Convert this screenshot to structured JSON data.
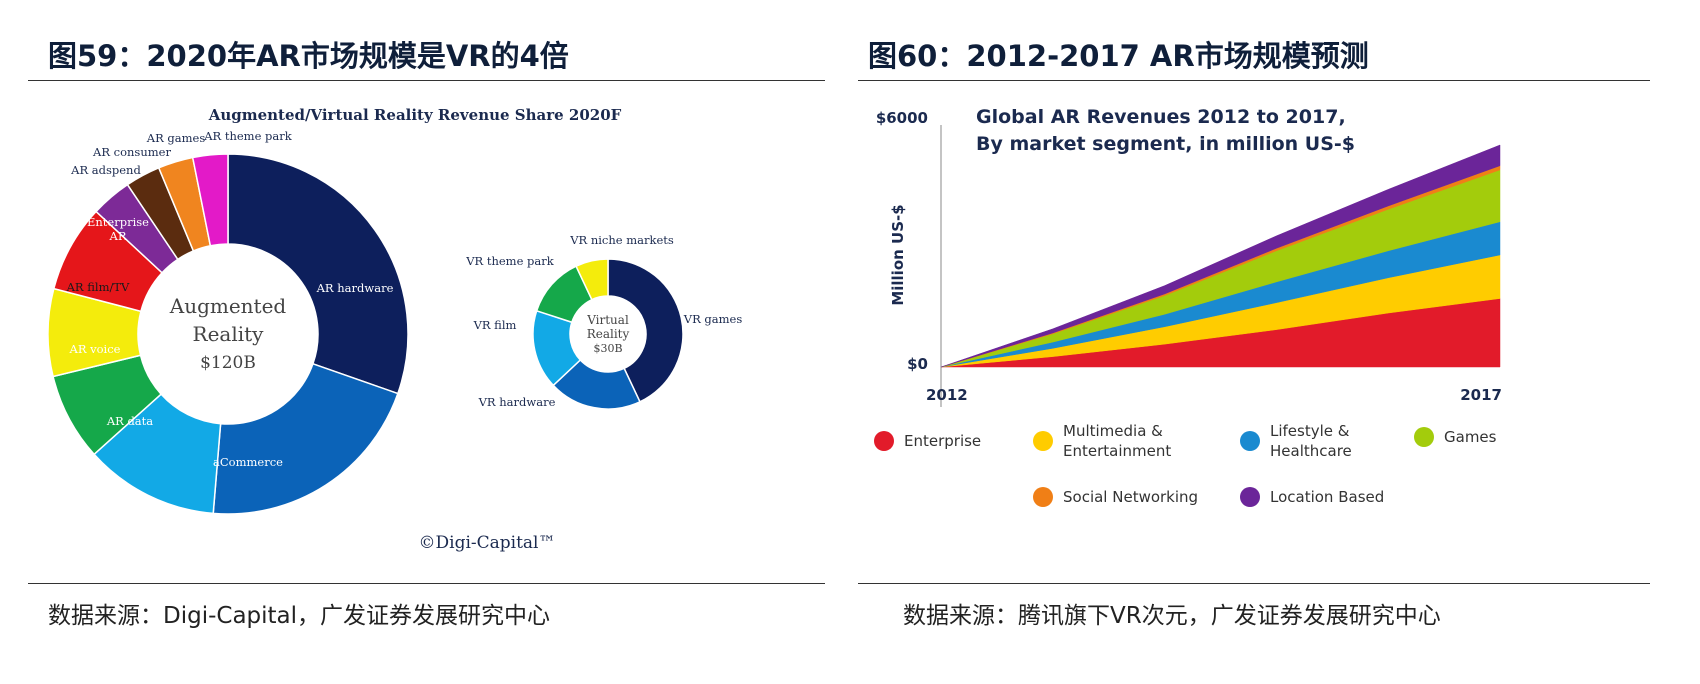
{
  "figure_left": {
    "title": "图59：2020年AR市场规模是VR的4倍",
    "source": "数据来源：Digi-Capital，广发证券发展研究中心"
  },
  "figure_right": {
    "title": "图60：2012-2017 AR市场规模预测",
    "source": "数据来源：腾讯旗下VR次元，广发证券发展研究中心"
  },
  "chart_data": [
    {
      "type": "pie",
      "title": "Augmented/Virtual Reality Revenue Share 2020F",
      "watermark": "©Digi-Capital™",
      "donuts": [
        {
          "center_label": [
            "Augmented",
            "Reality",
            "$120B"
          ],
          "slices": [
            {
              "label": "AR hardware",
              "value": 29.0,
              "color": "#0d1f5c"
            },
            {
              "label": "aCommerce",
              "value": 20.0,
              "color": "#0b63b8"
            },
            {
              "label": "AR data",
              "value": 11.5,
              "color": "#12a9e6"
            },
            {
              "label": "AR voice",
              "value": 7.5,
              "color": "#15a84a"
            },
            {
              "label": "AR film/TV",
              "value": 7.5,
              "color": "#f4ec0c"
            },
            {
              "label": "Enterprise AR",
              "value": 7.5,
              "color": "#e5161a"
            },
            {
              "label": "AR adspend",
              "value": 3.5,
              "color": "#7d2a97"
            },
            {
              "label": "AR consumer",
              "value": 3.0,
              "color": "#5b2c0f"
            },
            {
              "label": "AR games",
              "value": 3.0,
              "color": "#f0851f"
            },
            {
              "label": "AR theme park",
              "value": 3.0,
              "color": "#e31ac8"
            }
          ]
        },
        {
          "center_label": [
            "Virtual",
            "Reality",
            "$30B"
          ],
          "slices": [
            {
              "label": "VR games",
              "value": 43.0,
              "color": "#0d1f5c"
            },
            {
              "label": "VR hardware",
              "value": 20.0,
              "color": "#0b63b8"
            },
            {
              "label": "VR film",
              "value": 17.0,
              "color": "#12a9e6"
            },
            {
              "label": "VR theme park",
              "value": 13.0,
              "color": "#15a84a"
            },
            {
              "label": "VR niche markets",
              "value": 7.0,
              "color": "#f4ec0c"
            }
          ]
        }
      ]
    },
    {
      "type": "area",
      "title": [
        "Global AR Revenues 2012 to 2017,",
        "By market segment, in million US-$"
      ],
      "ylabel": "Million US-$",
      "y_ticks": [
        "$6000",
        "$0"
      ],
      "x_ticks": [
        "2012",
        "2017"
      ],
      "x": [
        2012,
        2013,
        2014,
        2015,
        2016,
        2017
      ],
      "ylim": [
        0,
        6000
      ],
      "series": [
        {
          "name": "Enterprise",
          "color": "#e21b2a",
          "values": [
            0,
            250,
            550,
            900,
            1300,
            1650
          ]
        },
        {
          "name": "Multimedia & Entertainment",
          "color": "#ffcc00",
          "values": [
            0,
            200,
            420,
            650,
            850,
            1050
          ]
        },
        {
          "name": "Lifestyle & Healthcare",
          "color": "#1a8ad0",
          "values": [
            0,
            150,
            300,
            500,
            650,
            800
          ]
        },
        {
          "name": "Games",
          "color": "#a3cc0c",
          "values": [
            0,
            200,
            450,
            750,
            1000,
            1250
          ]
        },
        {
          "name": "Social Networking",
          "color": "#f07f16",
          "values": [
            0,
            20,
            40,
            60,
            80,
            100
          ]
        },
        {
          "name": "Location Based",
          "color": "#6b2599",
          "values": [
            0,
            100,
            200,
            300,
            400,
            500
          ]
        }
      ]
    }
  ]
}
